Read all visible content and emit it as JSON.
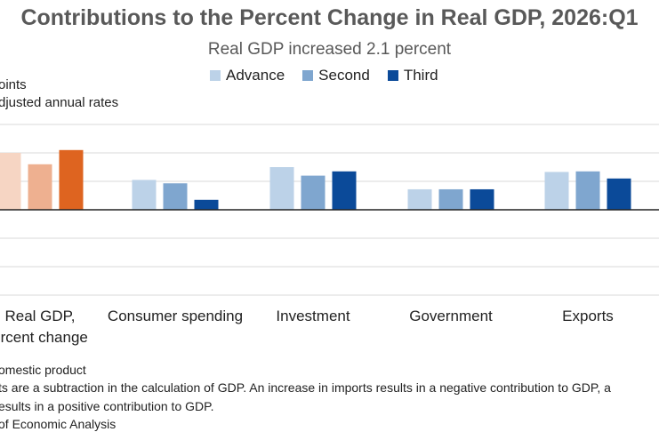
{
  "title": "Contributions to the Percent Change in Real GDP, 2026:Q1",
  "subtitle": "Real GDP increased 2.1 percent",
  "units_line1": "oints",
  "units_line2": "djusted annual rates",
  "footnotes": {
    "line1": "omestic product",
    "line2": "ts are a subtraction in the calculation of GDP. An increase in imports results in a negative contribution to GDP, a",
    "line3": "esults in a positive contribution to GDP.",
    "line4": "of Economic Analysis"
  },
  "colors": {
    "advance": "#bcd2e8",
    "second": "#7fa6cf",
    "third": "#0b4a99",
    "gdp_advance": "#f6d5c3",
    "gdp_second": "#eeb090",
    "gdp_third": "#de6420",
    "grid": "#d9d9d9",
    "axis": "#222222"
  },
  "chart_data": {
    "type": "bar",
    "title": "Contributions to the Percent Change in Real GDP, 2026:Q1",
    "subtitle": "Real GDP increased 2.1 percent",
    "categories": [
      "Real GDP,\npercent change",
      "Consumer spending",
      "Investment",
      "Government",
      "Exports"
    ],
    "category_lines": [
      [
        "Real GDP,",
        "ercent change"
      ],
      [
        "Consumer spending"
      ],
      [
        "Investment"
      ],
      [
        "Government"
      ],
      [
        "Exports"
      ]
    ],
    "series": [
      {
        "name": "Advance",
        "values": [
          2.0,
          1.05,
          1.5,
          0.72,
          1.33
        ]
      },
      {
        "name": "Second",
        "values": [
          1.6,
          0.93,
          1.2,
          0.72,
          1.35
        ]
      },
      {
        "name": "Third",
        "values": [
          2.1,
          0.35,
          1.35,
          0.72,
          1.1
        ]
      }
    ],
    "ylim": [
      -3,
      3
    ],
    "gridlines": [
      -3,
      -2,
      -1,
      0,
      1,
      2,
      3
    ],
    "grid": true,
    "legend": "top-center"
  }
}
